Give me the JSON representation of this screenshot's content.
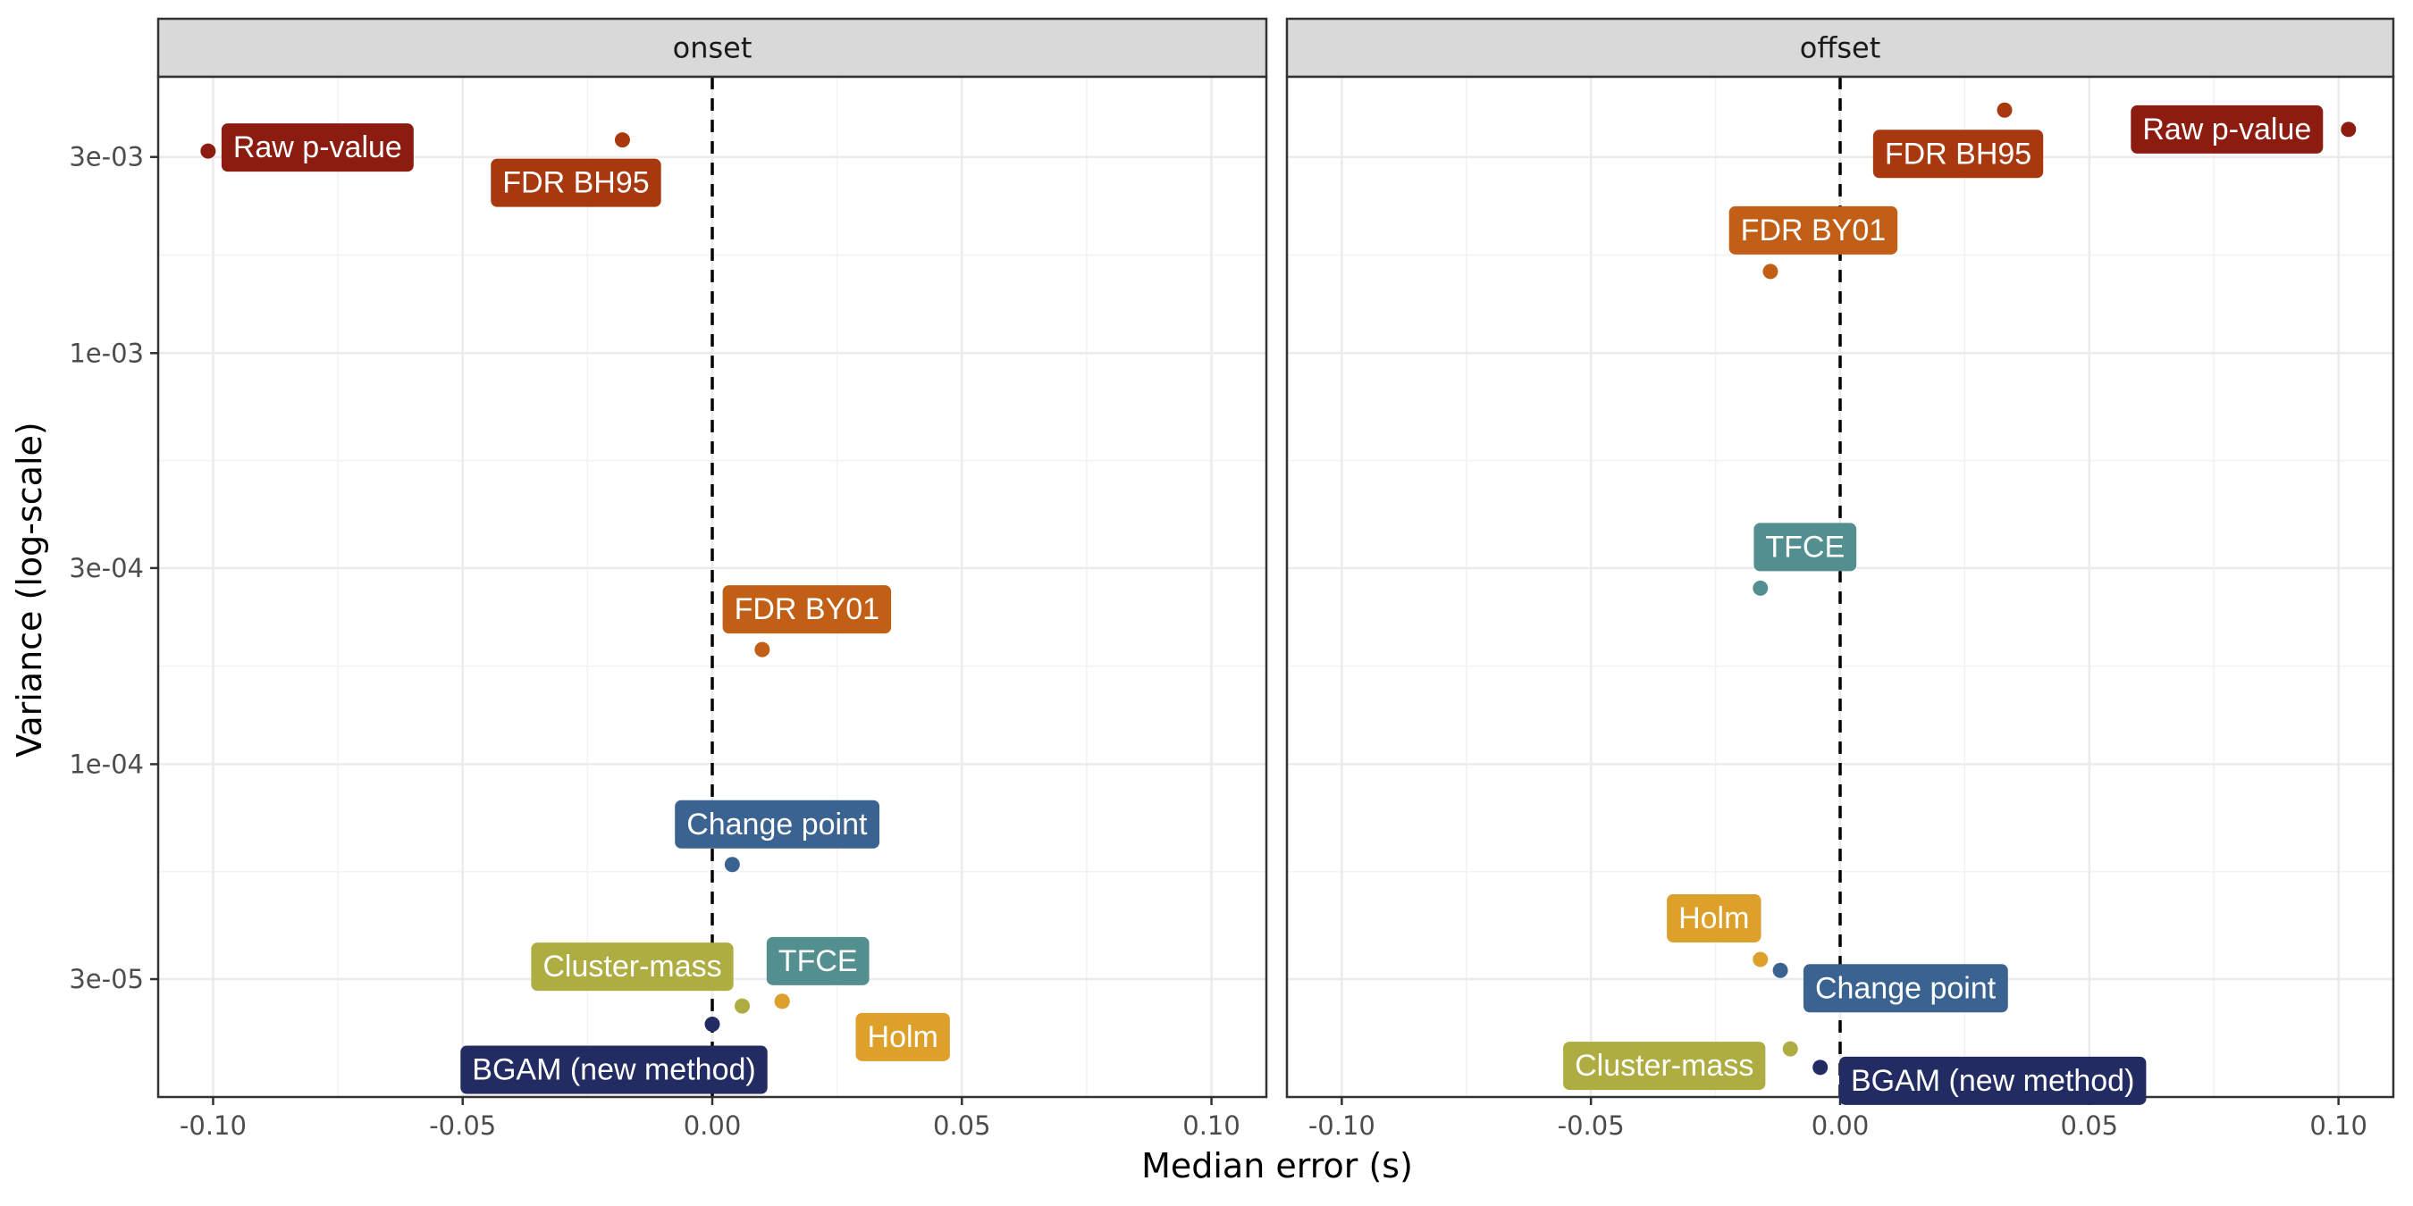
{
  "chart_data": {
    "type": "scatter",
    "xlabel": "Median error (s)",
    "ylabel": "Variance (log-scale)",
    "y_scale": "log",
    "grid": true,
    "x_ticks": [
      "-0.10",
      "-0.05",
      "0.00",
      "0.05",
      "0.10"
    ],
    "x_tick_values": [
      -0.1,
      -0.05,
      0.0,
      0.05,
      0.1
    ],
    "y_ticks": [
      "3e-05",
      "1e-04",
      "3e-04",
      "1e-03",
      "3e-03"
    ],
    "y_tick_values": [
      3e-05,
      0.0001,
      0.0003,
      0.001,
      0.003
    ],
    "xlim": [
      -0.111,
      0.111
    ],
    "ylim": [
      1.55e-05,
      0.0047
    ],
    "reference_line": {
      "x": 0,
      "style": "dashed"
    },
    "colors": {
      "Raw p-value": "#8c1b10",
      "FDR BH95": "#a8390e",
      "FDR BY01": "#c15f17",
      "Change point": "#3b6391",
      "TFCE": "#548f90",
      "Cluster-mass": "#adad41",
      "Holm": "#dca02b",
      "BGAM (new method)": "#222c63"
    },
    "panels": [
      {
        "title": "onset",
        "points": [
          {
            "method": "Raw p-value",
            "x": -0.101,
            "y": 0.0031
          },
          {
            "method": "FDR BH95",
            "x": -0.018,
            "y": 0.0033
          },
          {
            "method": "FDR BY01",
            "x": 0.01,
            "y": 0.00019
          },
          {
            "method": "Change point",
            "x": 0.004,
            "y": 5.7e-05
          },
          {
            "method": "TFCE",
            "x": 0.014,
            "y": 2.65e-05
          },
          {
            "method": "Cluster-mass",
            "x": 0.006,
            "y": 2.58e-05
          },
          {
            "method": "Holm",
            "x": 0.014,
            "y": 2.65e-05
          },
          {
            "method": "BGAM (new method)",
            "x": 0.0,
            "y": 2.33e-05
          }
        ]
      },
      {
        "title": "offset",
        "points": [
          {
            "method": "Raw p-value",
            "x": 0.102,
            "y": 0.0035
          },
          {
            "method": "FDR BH95",
            "x": 0.033,
            "y": 0.0039
          },
          {
            "method": "FDR BY01",
            "x": -0.014,
            "y": 0.00158
          },
          {
            "method": "TFCE",
            "x": -0.016,
            "y": 0.000268
          },
          {
            "method": "Holm",
            "x": -0.016,
            "y": 3.35e-05
          },
          {
            "method": "Change point",
            "x": -0.012,
            "y": 3.15e-05
          },
          {
            "method": "Cluster-mass",
            "x": -0.01,
            "y": 2.03e-05
          },
          {
            "method": "BGAM (new method)",
            "x": -0.004,
            "y": 1.83e-05
          }
        ]
      }
    ]
  }
}
